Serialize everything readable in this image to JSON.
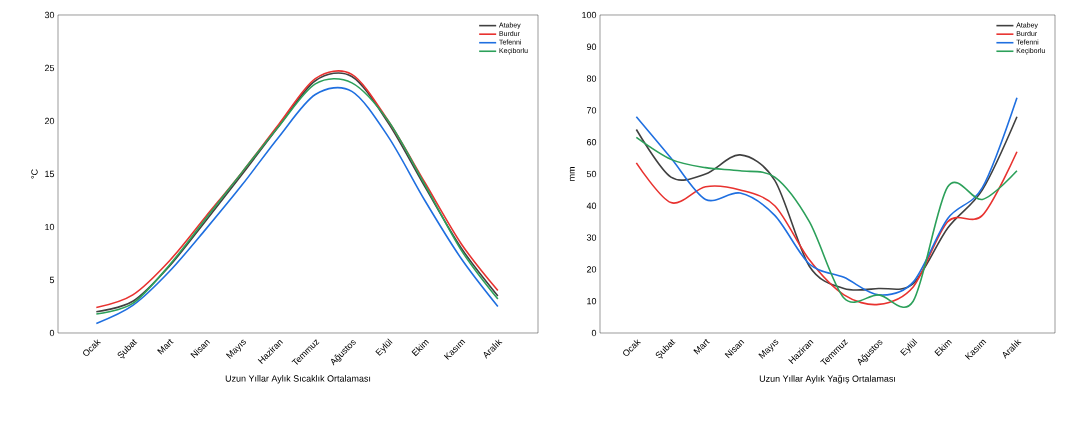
{
  "chart_data": [
    {
      "type": "line",
      "xlabel": "Uzun Yıllar Aylık Sıcaklık Ortalaması",
      "ylabel": "°C",
      "categories": [
        "Ocak",
        "Şubat",
        "Mart",
        "Nisan",
        "Mayıs",
        "Haziran",
        "Temmuz",
        "Ağustos",
        "Eylül",
        "Ekim",
        "Kasım",
        "Aralık"
      ],
      "ylim": [
        0,
        30
      ],
      "yticks": [
        0,
        5,
        10,
        15,
        20,
        25,
        30
      ],
      "grid": false,
      "legend": "top right",
      "marker": "none",
      "line_style": "solid",
      "series": [
        {
          "name": "Atabey",
          "color": "#404040",
          "values": [
            2.0,
            3.0,
            6.3,
            10.6,
            15.0,
            19.5,
            23.8,
            24.2,
            19.8,
            13.8,
            8.0,
            3.5
          ]
        },
        {
          "name": "Burdur",
          "color": "#e8322f",
          "values": [
            2.4,
            3.6,
            6.8,
            11.0,
            15.2,
            19.7,
            24.0,
            24.4,
            20.0,
            14.2,
            8.4,
            4.0
          ]
        },
        {
          "name": "Tefenni",
          "color": "#1f6fe0",
          "values": [
            0.9,
            2.6,
            5.8,
            9.8,
            14.0,
            18.5,
            22.5,
            22.8,
            18.5,
            12.5,
            7.0,
            2.5
          ]
        },
        {
          "name": "Keçiborlu",
          "color": "#2ca05a",
          "values": [
            1.8,
            2.8,
            6.4,
            10.8,
            15.2,
            19.5,
            23.5,
            23.6,
            20.0,
            14.0,
            7.8,
            3.2
          ]
        }
      ]
    },
    {
      "type": "line",
      "xlabel": "Uzun Yıllar Aylık Yağış Ortalaması",
      "ylabel": "mm",
      "categories": [
        "Ocak",
        "Şubat",
        "Mart",
        "Nisan",
        "Mayıs",
        "Haziran",
        "Temmuz",
        "Ağustos",
        "Eylül",
        "Ekim",
        "Kasım",
        "Aralık"
      ],
      "ylim": [
        0,
        100
      ],
      "yticks": [
        0,
        10,
        20,
        30,
        40,
        50,
        60,
        70,
        80,
        90,
        100
      ],
      "grid": false,
      "legend": "top right",
      "marker": "none",
      "line_style": "solid",
      "series": [
        {
          "name": "Atabey",
          "color": "#404040",
          "values": [
            64,
            49,
            50,
            56,
            48,
            21,
            14,
            14,
            15.5,
            33,
            45,
            68
          ]
        },
        {
          "name": "Burdur",
          "color": "#e8322f",
          "values": [
            53.5,
            41,
            46,
            45,
            40,
            23,
            12,
            9,
            14.5,
            35,
            37,
            57
          ]
        },
        {
          "name": "Tefenni",
          "color": "#1f6fe0",
          "values": [
            68,
            55,
            42,
            44,
            37,
            21.7,
            17.5,
            12,
            16,
            36,
            45.7,
            74
          ]
        },
        {
          "name": "Keçiborlu",
          "color": "#2ca05a",
          "values": [
            61.5,
            54.6,
            52,
            51,
            49,
            35,
            11,
            12,
            10,
            46,
            42,
            51
          ]
        }
      ]
    }
  ]
}
